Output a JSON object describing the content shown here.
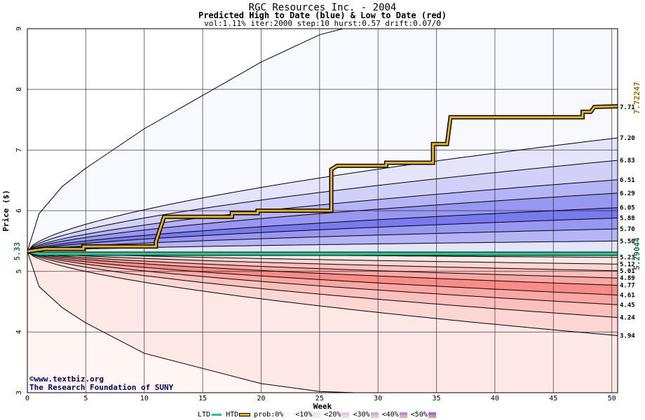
{
  "header": {
    "title": "RGC Resources Inc. - 2004",
    "subtitle": "Predicted High to Date (blue) &  Low to Date (red)",
    "params": "vol:1.11% iter:2000 step:10 hurst:0.57 drift:0.07/0"
  },
  "credits": {
    "line1": "©www.textbiz.org",
    "line2": "The Research Foundation of SUNY"
  },
  "legend": {
    "ltd_label": "LTD",
    "htd_label": "HTD",
    "prob_label": "prob:0%",
    "bands": [
      "<10%",
      "<20%",
      "<30%",
      "<40%",
      "<50%"
    ],
    "colors": {
      "ltd": "#20c890",
      "htd": "#e8b010",
      "band_neutral": "#f8f8ff",
      "band10_hi": "#e4e4fa",
      "band10_lo": "#fde8e6",
      "band20_hi": "#d0d0f8",
      "band20_lo": "#fcd6d2",
      "band30_hi": "#b4b4f6",
      "band30_lo": "#fcc0bc",
      "band40_hi": "#9898f2",
      "band40_lo": "#fba8a4",
      "band50_hi": "#7a7af0",
      "band50_lo": "#fa8c88"
    }
  },
  "chart_data": {
    "type": "area",
    "title": "RGC Resources Inc. - 2004",
    "subtitle": "Predicted High to Date (blue) &  Low to Date (red)",
    "xlabel": "Week",
    "ylabel": "Price ($)",
    "xlim": [
      0,
      50.5
    ],
    "ylim": [
      3,
      9
    ],
    "x_ticks": [
      0,
      5,
      10,
      15,
      20,
      25,
      30,
      35,
      40,
      45,
      50
    ],
    "y_ticks": [
      3,
      4,
      5,
      6,
      7,
      8,
      9
    ],
    "grid": true,
    "start_price": 5.33,
    "start_label": "5.33",
    "htd_end_label": "7.72247",
    "ltd_end_label": "5.29044",
    "high_percentile_end_values": [
      5.5,
      5.7,
      5.88,
      6.05,
      6.29,
      6.51,
      6.83,
      7.2
    ],
    "low_percentile_end_values": [
      5.23,
      5.12,
      5.01,
      4.89,
      4.77,
      4.61,
      4.45,
      4.24,
      3.94
    ],
    "high_outer_envelope": [
      [
        0,
        5.33
      ],
      [
        1,
        5.95
      ],
      [
        3,
        6.4
      ],
      [
        5,
        6.7
      ],
      [
        10,
        7.35
      ],
      [
        15,
        7.9
      ],
      [
        20,
        8.45
      ],
      [
        25,
        8.9
      ],
      [
        27,
        9.0
      ]
    ],
    "low_outer_envelope": [
      [
        0,
        5.33
      ],
      [
        1,
        4.75
      ],
      [
        3,
        4.4
      ],
      [
        5,
        4.15
      ],
      [
        10,
        3.65
      ],
      [
        15,
        3.4
      ],
      [
        20,
        3.15
      ],
      [
        25,
        3.02
      ],
      [
        28,
        3.0
      ]
    ],
    "end_labels": [
      "7.71",
      "7.20",
      "6.83",
      "6.51",
      "6.29",
      "6.05",
      "5.88",
      "5.70",
      "5.50",
      "5.23",
      "5.12",
      "5.01",
      "4.89",
      "4.77",
      "4.61",
      "4.45",
      "4.24",
      "3.94"
    ],
    "series": [
      {
        "name": "HTD",
        "values": [
          [
            0,
            5.33
          ],
          [
            1.5,
            5.37
          ],
          [
            4.8,
            5.37
          ],
          [
            4.8,
            5.41
          ],
          [
            11,
            5.41
          ],
          [
            11,
            5.49
          ],
          [
            11.7,
            5.9
          ],
          [
            17.5,
            5.9
          ],
          [
            17.5,
            5.96
          ],
          [
            19.7,
            5.96
          ],
          [
            19.7,
            6.0
          ],
          [
            26,
            6.0
          ],
          [
            26,
            6.68
          ],
          [
            26.5,
            6.74
          ],
          [
            30.7,
            6.74
          ],
          [
            30.7,
            6.79
          ],
          [
            34.7,
            6.79
          ],
          [
            34.7,
            7.1
          ],
          [
            35.9,
            7.1
          ],
          [
            36.2,
            7.54
          ],
          [
            47.5,
            7.54
          ],
          [
            47.5,
            7.63
          ],
          [
            48.2,
            7.63
          ],
          [
            48.5,
            7.71
          ],
          [
            50.5,
            7.72
          ]
        ]
      },
      {
        "name": "LTD",
        "values": [
          [
            0,
            5.33
          ],
          [
            1,
            5.29
          ],
          [
            12.5,
            5.29
          ],
          [
            50.5,
            5.29
          ]
        ]
      }
    ]
  }
}
